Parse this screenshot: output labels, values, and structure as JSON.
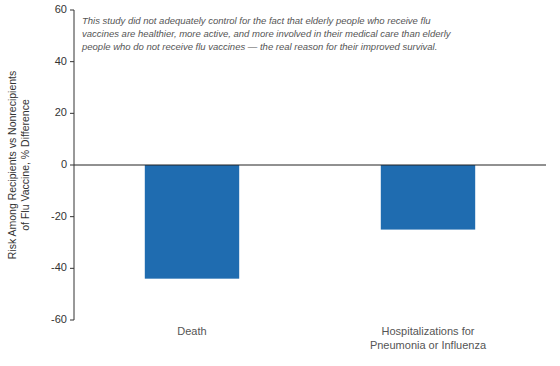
{
  "chart_data": {
    "type": "bar",
    "categories": [
      "Death",
      "Hospitalizations for\nPneumonia or Influenza"
    ],
    "values": [
      -44,
      -25
    ],
    "color": "#1F6CB0",
    "ylim": [
      -60,
      60
    ],
    "yticks": [
      -60,
      -40,
      -20,
      0,
      20,
      40,
      60
    ],
    "ylabel": "Risk Among Recipients vs Nonrecipients\nof Flu Vaccine, % Difference",
    "annotation": "This study did not adequately control for the fact that elderly people who receive flu\nvaccines are healthier, more active, and more involved in their medical care than elderly\npeople who do not receive flu vaccines — the real reason for their improved survival.",
    "grid": false
  }
}
